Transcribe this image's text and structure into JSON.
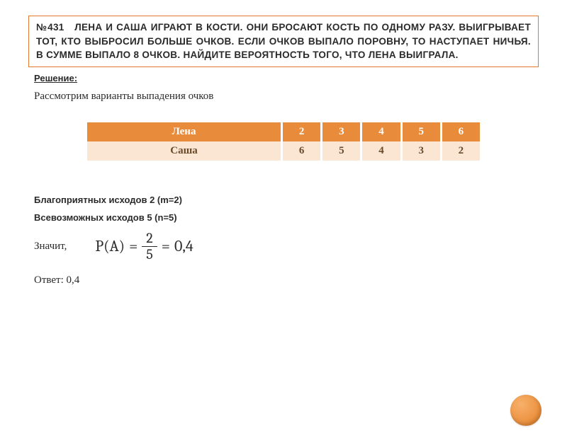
{
  "problem": {
    "number_prefix": "№431",
    "text_line1": "№431   ЛЕНА И САША ИГРАЮТ В КОСТИ. ОНИ БРОСАЮТ КОСТЬ ПО ОДНОМУ РАЗУ. ВЫИГРЫВАЕТ ТОТ, КТО ВЫБРОСИЛ БОЛЬШЕ ОЧКОВ. ЕСЛИ ОЧКОВ ВЫПАЛО ПОРОВНУ, ТО НАСТУПАЕТ НИЧЬЯ. В СУММЕ ВЫПАЛО 8 ОЧКОВ. НАЙДИТЕ ВЕРОЯТНОСТЬ ТОГО, ЧТО ЛЕНА ВЫИГРАЛА."
  },
  "solution_label": "Решение:",
  "intro": "Рассмотрим варианты выпадения очков",
  "table": {
    "type": "table",
    "row1_name": "Лена",
    "row2_name": "Саша",
    "lena": [
      "2",
      "3",
      "4",
      "5",
      "6"
    ],
    "sasha": [
      "6",
      "5",
      "4",
      "3",
      "2"
    ],
    "header_bg": "#e88b3a",
    "header_fg": "#ffffff",
    "row_bg": "#fbe6d4",
    "row_fg": "#6b4a2a"
  },
  "favorable": "Благоприятных исходов 2 (m=2)",
  "total": "Всевозможных исходов 5 (n=5)",
  "znachit": "Значит,",
  "formula": {
    "lhs": "P(A)",
    "eq1": "=",
    "num": "2",
    "den": "5",
    "eq2": "=",
    "rhs": "0,4"
  },
  "answer": "Ответ: 0,4",
  "colors": {
    "border": "#e27a2e",
    "button": "#e68128"
  }
}
